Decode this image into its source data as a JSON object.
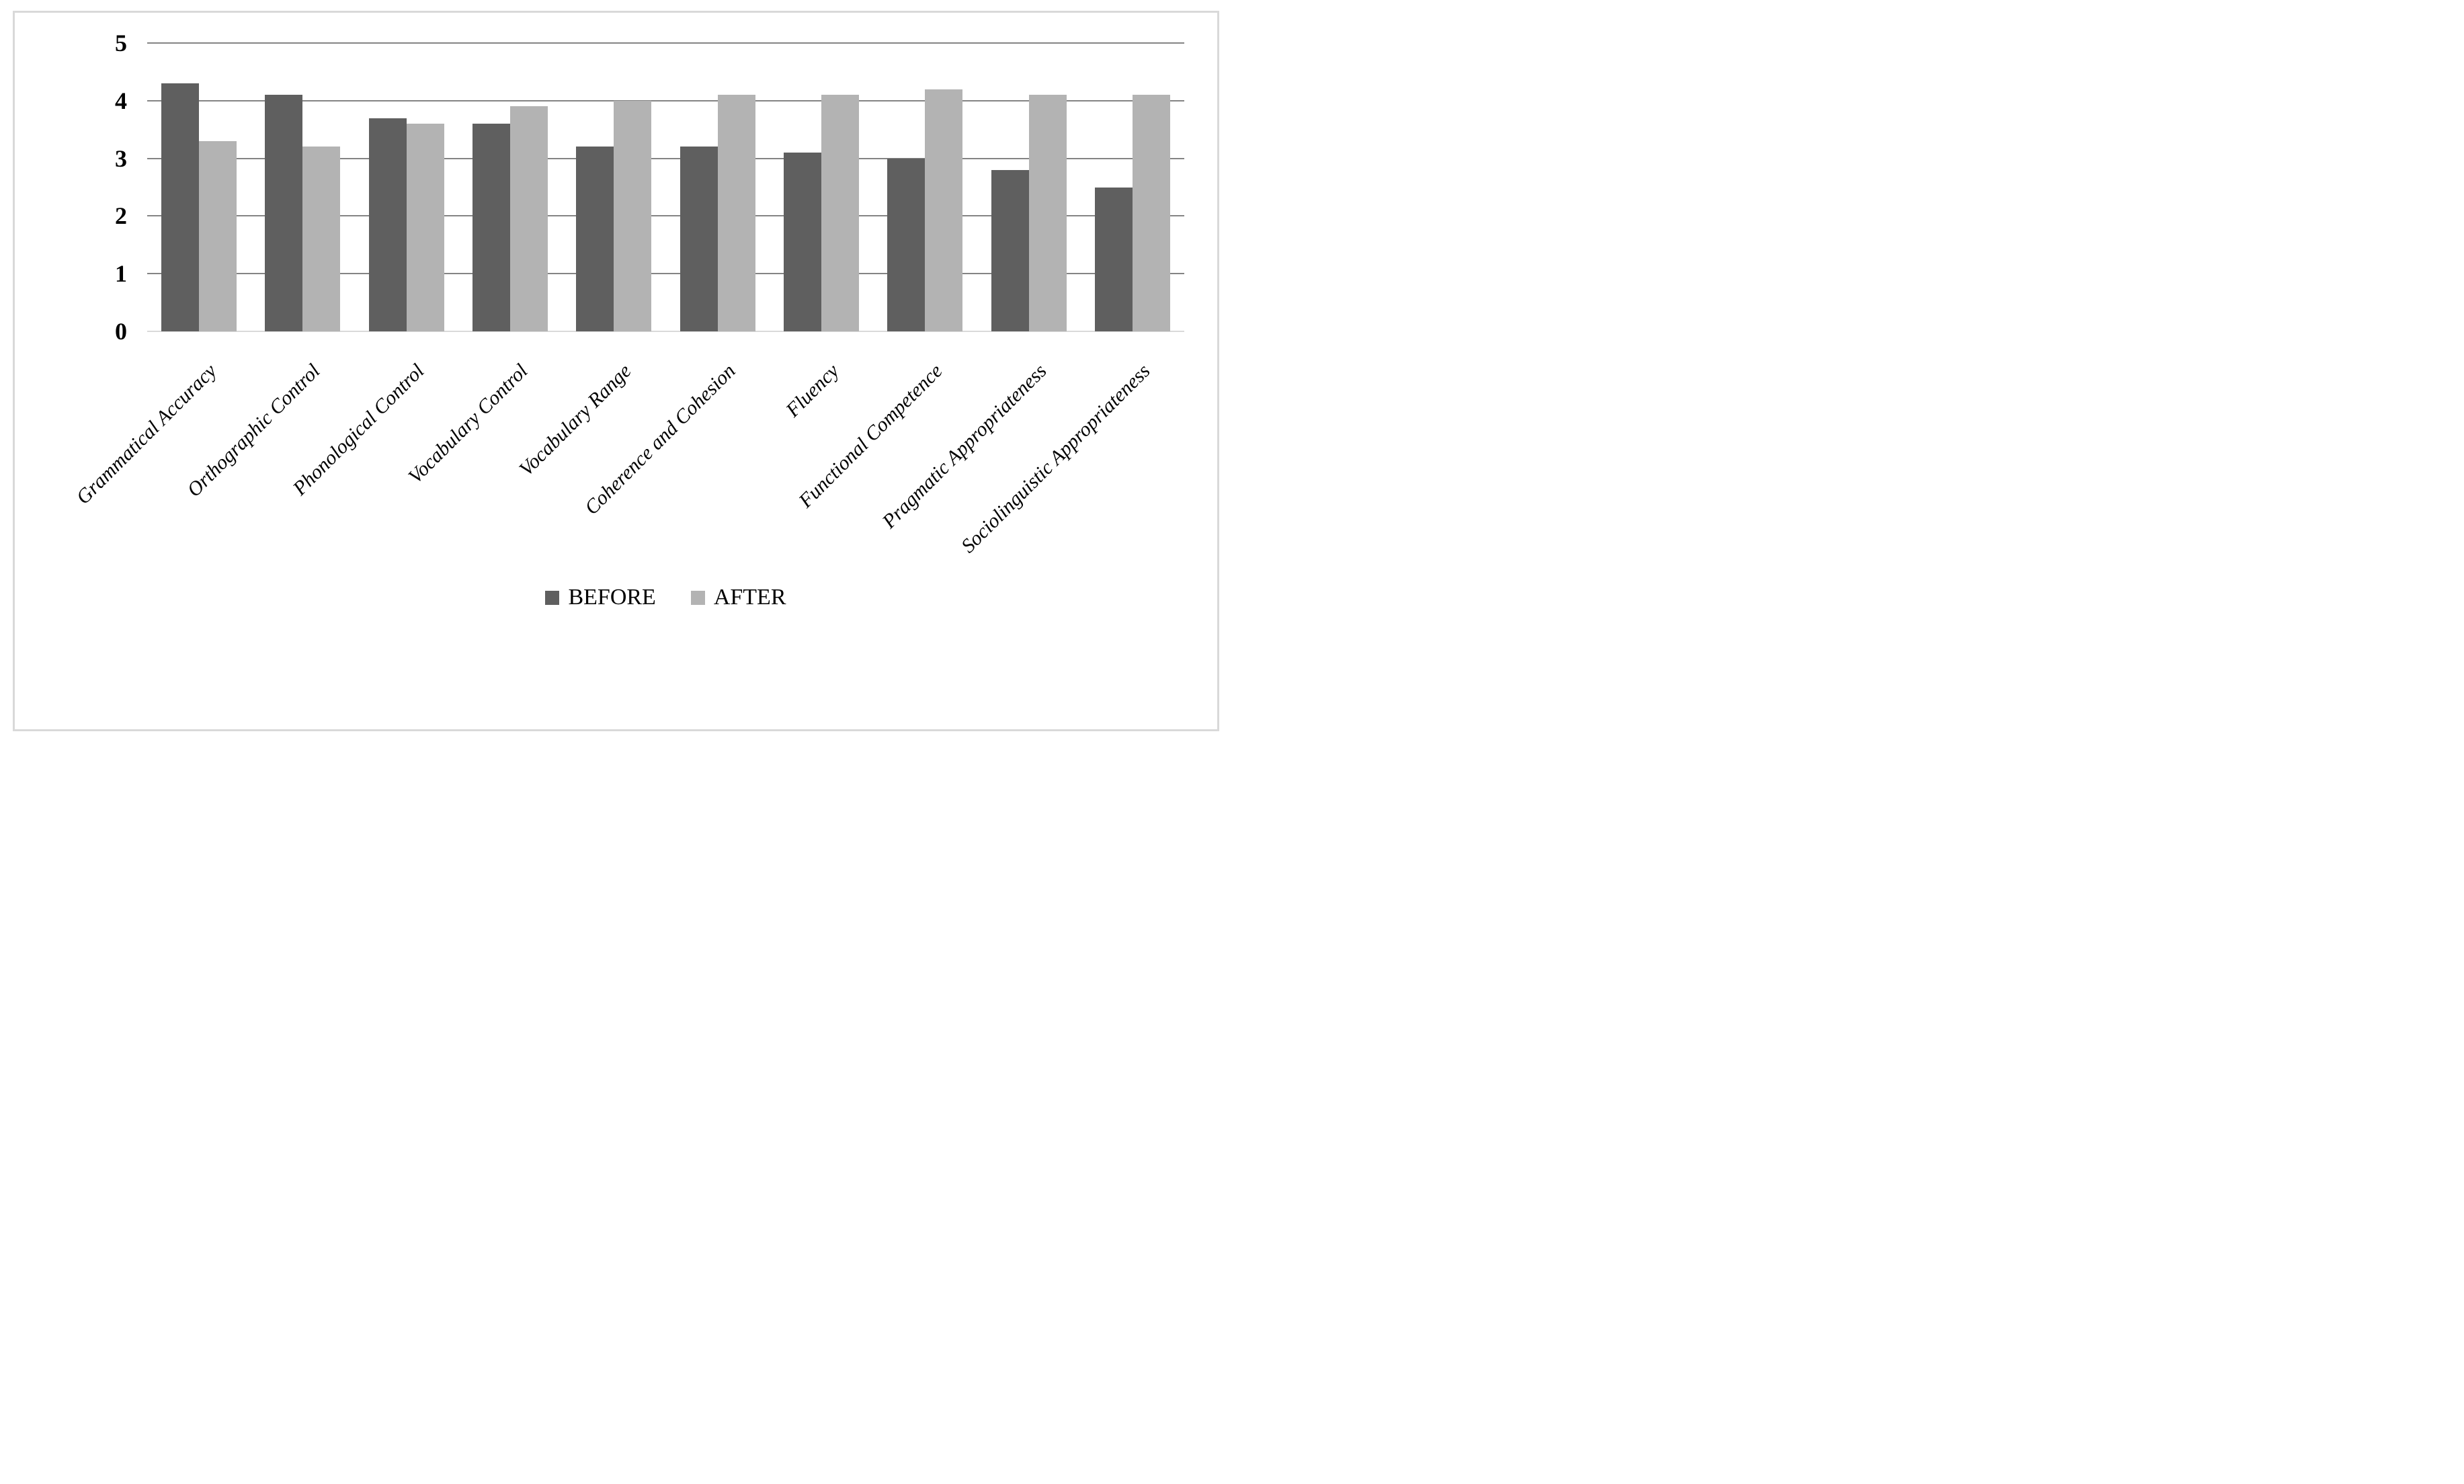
{
  "figure": {
    "background_color": "#ffffff",
    "frame_border_color": "#d9d9d9",
    "gridline_color": "#848484",
    "baseline_color": "#d9d9d9",
    "text_color": "#000000"
  },
  "chart_data": {
    "type": "bar",
    "title": "",
    "xlabel": "",
    "ylabel": "",
    "categories": [
      "Grammatical Accuracy",
      "Orthographic Control",
      "Phonological Control",
      "Vocabulary Control",
      "Vocabulary Range",
      "Coherence and Cohesion",
      "Fluency",
      "Functional Competence",
      "Pragmatic Appropriateness",
      "Sociolinguistic Appropriateness"
    ],
    "series": [
      {
        "name": "BEFORE",
        "color": "#5f5f5f",
        "values": [
          4.3,
          4.1,
          3.7,
          3.6,
          3.2,
          3.2,
          3.1,
          3.0,
          2.8,
          2.5
        ]
      },
      {
        "name": "AFTER",
        "color": "#b3b3b3",
        "values": [
          3.3,
          3.2,
          3.6,
          3.9,
          4.0,
          4.1,
          4.1,
          4.2,
          4.1,
          4.1
        ]
      }
    ],
    "ylim": [
      0,
      5
    ],
    "yticks": [
      0,
      1,
      2,
      3,
      4,
      5
    ],
    "grid": "horizontal",
    "legend_position": "bottom",
    "category_label_rotation": -45
  }
}
